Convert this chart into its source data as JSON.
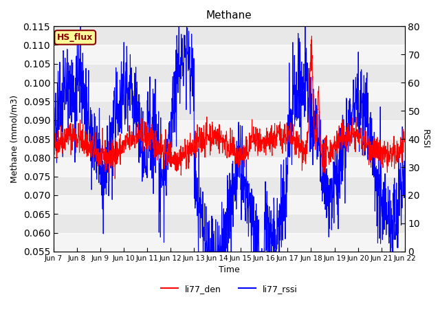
{
  "title": "Methane",
  "ylabel_left": "Methane (mmol/m3)",
  "ylabel_right": "RSSI",
  "xlabel": "Time",
  "ylim_left": [
    0.055,
    0.115
  ],
  "ylim_right": [
    0,
    80
  ],
  "yticks_left": [
    0.055,
    0.06,
    0.065,
    0.07,
    0.075,
    0.08,
    0.085,
    0.09,
    0.095,
    0.1,
    0.105,
    0.11,
    0.115
  ],
  "yticks_right": [
    0,
    10,
    20,
    30,
    40,
    50,
    60,
    70,
    80
  ],
  "xtick_labels": [
    "Jun 7",
    "Jun 8",
    "Jun 9",
    "Jun 10",
    "Jun 11",
    "Jun 12",
    "Jun 13",
    "Jun 14",
    "Jun 15",
    "Jun 16",
    "Jun 17",
    "Jun 18",
    "Jun 19",
    "Jun 20",
    "Jun 21",
    "Jun 22"
  ],
  "color_red": "#FF0000",
  "color_blue": "#0000FF",
  "legend_label": "HS_flux",
  "legend_facecolor": "#FFFF99",
  "legend_edgecolor": "#8B0000",
  "background_color": "#E8E8E8",
  "stripe_color": "#F5F5F5",
  "line1_label": "li77_den",
  "line2_label": "li77_rssi",
  "seed": 42
}
